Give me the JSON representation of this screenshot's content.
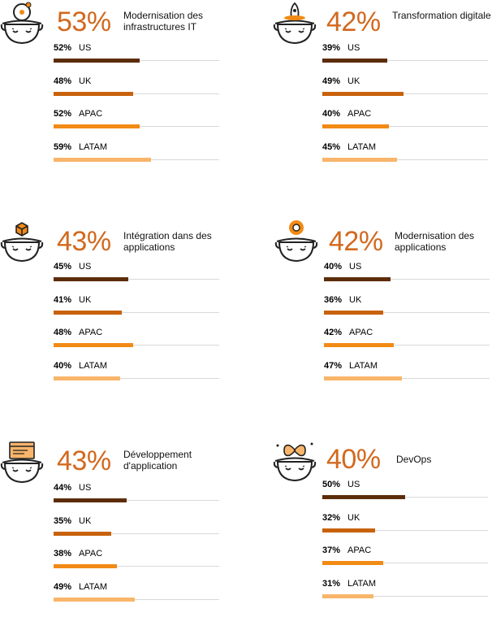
{
  "colors": {
    "US": "#5c2d0a",
    "UK": "#c8620c",
    "APAC": "#f28a16",
    "LATAM": "#f9b56a",
    "headline": "#d2691e"
  },
  "chart_data": [
    {
      "type": "bar",
      "headline": "53%",
      "title": "Modernisation des infrastructures IT",
      "icon": "satellite-head-icon",
      "categories": [
        "US",
        "UK",
        "APAC",
        "LATAM"
      ],
      "values": [
        52,
        48,
        52,
        59
      ],
      "labels": [
        "52%",
        "48%",
        "52%",
        "59%"
      ],
      "xlim": [
        0,
        100
      ]
    },
    {
      "type": "bar",
      "headline": "42%",
      "title": "Transformation digitale",
      "icon": "rocket-head-icon",
      "categories": [
        "US",
        "UK",
        "APAC",
        "LATAM"
      ],
      "values": [
        39,
        49,
        40,
        45
      ],
      "labels": [
        "39%",
        "49%",
        "40%",
        "45%"
      ],
      "xlim": [
        0,
        100
      ]
    },
    {
      "type": "bar",
      "headline": "43%",
      "title": "Intégration dans des applications",
      "icon": "cube-head-icon",
      "categories": [
        "US",
        "UK",
        "APAC",
        "LATAM"
      ],
      "values": [
        45,
        41,
        48,
        40
      ],
      "labels": [
        "45%",
        "41%",
        "48%",
        "40%"
      ],
      "xlim": [
        0,
        100
      ]
    },
    {
      "type": "bar",
      "headline": "42%",
      "title": "Modernisation des applications",
      "icon": "gear-head-icon",
      "categories": [
        "US",
        "UK",
        "APAC",
        "LATAM"
      ],
      "values": [
        40,
        36,
        42,
        47
      ],
      "labels": [
        "40%",
        "36%",
        "42%",
        "47%"
      ],
      "xlim": [
        0,
        100
      ]
    },
    {
      "type": "bar",
      "headline": "43%",
      "title": "Développement d'application",
      "icon": "browser-window-head-icon",
      "categories": [
        "US",
        "UK",
        "APAC",
        "LATAM"
      ],
      "values": [
        44,
        35,
        38,
        49
      ],
      "labels": [
        "44%",
        "35%",
        "38%",
        "49%"
      ],
      "xlim": [
        0,
        100
      ]
    },
    {
      "type": "bar",
      "headline": "40%",
      "title": "DevOps",
      "icon": "infinity-head-icon",
      "categories": [
        "US",
        "UK",
        "APAC",
        "LATAM"
      ],
      "values": [
        50,
        32,
        37,
        31
      ],
      "labels": [
        "50%",
        "32%",
        "37%",
        "31%"
      ],
      "xlim": [
        0,
        100
      ]
    }
  ]
}
